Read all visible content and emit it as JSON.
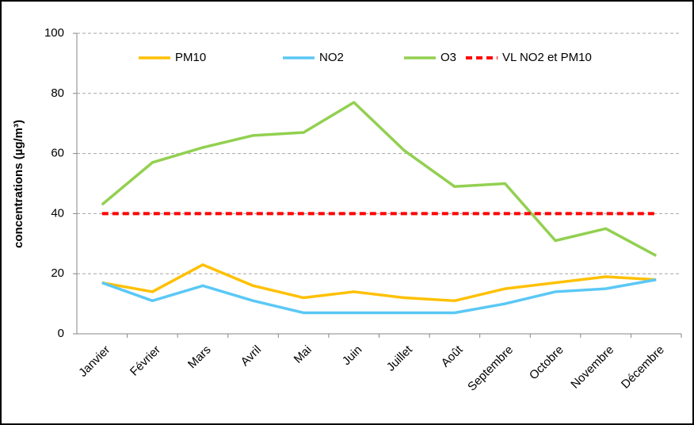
{
  "chart_data": {
    "type": "line",
    "ylabel": "concentrations (µg/m³)",
    "categories": [
      "Janvier",
      "Février",
      "Mars",
      "Avril",
      "Mai",
      "Juin",
      "Juillet",
      "Août",
      "Septembre",
      "Octobre",
      "Novembre",
      "Décembre"
    ],
    "series": [
      {
        "name": "PM10",
        "color": "#ffc000",
        "line_style": "solid",
        "values": [
          17,
          14,
          23,
          16,
          12,
          14,
          12,
          11,
          15,
          17,
          19,
          18
        ]
      },
      {
        "name": "NO2",
        "color": "#5bc8f5",
        "line_style": "solid",
        "values": [
          17,
          11,
          16,
          11,
          7,
          7,
          7,
          7,
          10,
          14,
          15,
          18
        ]
      },
      {
        "name": "O3",
        "color": "#92d050",
        "line_style": "solid",
        "values": [
          43,
          57,
          62,
          66,
          67,
          77,
          61,
          49,
          50,
          31,
          35,
          26
        ]
      },
      {
        "name": "VL NO2 et PM10",
        "color": "#ff0000",
        "line_style": "dashed",
        "values": [
          40,
          40,
          40,
          40,
          40,
          40,
          40,
          40,
          40,
          40,
          40,
          40
        ]
      }
    ],
    "ylim": [
      0,
      100
    ],
    "yticks": [
      0,
      20,
      40,
      60,
      80,
      100
    ],
    "grid": true,
    "legend": "top"
  }
}
